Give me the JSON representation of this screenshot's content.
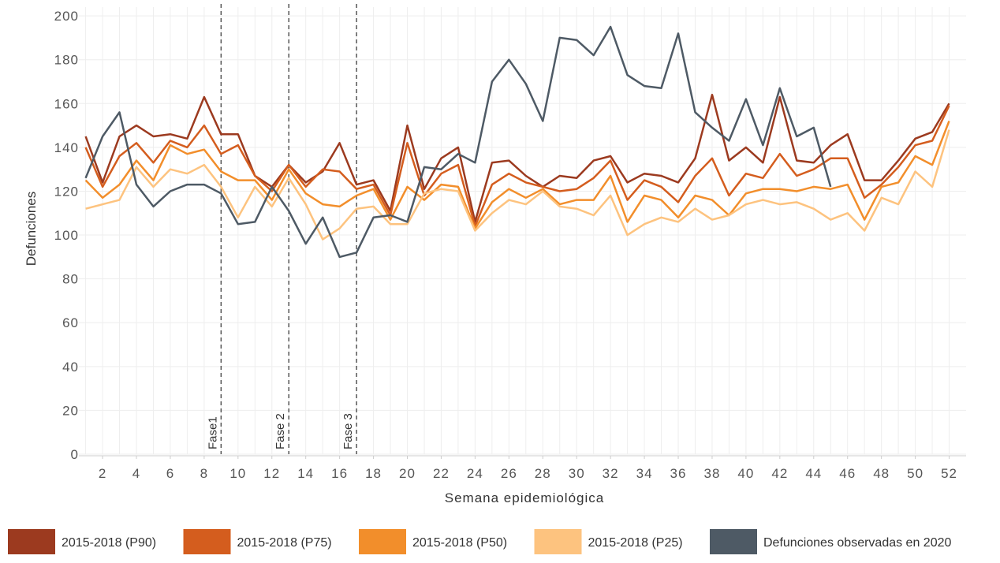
{
  "chart_data": {
    "type": "line",
    "x_label": "Semana epidemiológica",
    "y_label": "Defunciones",
    "x": [
      1,
      2,
      3,
      4,
      5,
      6,
      7,
      8,
      9,
      10,
      11,
      12,
      13,
      14,
      15,
      16,
      17,
      18,
      19,
      20,
      21,
      22,
      23,
      24,
      25,
      26,
      27,
      28,
      29,
      30,
      31,
      32,
      33,
      34,
      35,
      36,
      37,
      38,
      39,
      40,
      41,
      42,
      43,
      44,
      45,
      46,
      47,
      48,
      49,
      50,
      51,
      52
    ],
    "xlim": [
      0.6,
      53
    ],
    "xticks": [
      2,
      4,
      6,
      8,
      10,
      12,
      14,
      16,
      18,
      20,
      22,
      24,
      26,
      28,
      30,
      32,
      34,
      36,
      38,
      40,
      42,
      44,
      46,
      48,
      50,
      52
    ],
    "ylim": [
      0,
      204
    ],
    "yticks": [
      0,
      20,
      40,
      60,
      80,
      100,
      120,
      140,
      160,
      180,
      200
    ],
    "grid": true,
    "legend": "bottom",
    "annotations": [
      {
        "x": 9,
        "label": "Fase1"
      },
      {
        "x": 13,
        "label": "Fase 2"
      },
      {
        "x": 17,
        "label": "Fase 3"
      }
    ],
    "series": [
      {
        "name": "2015-2018 (P90)",
        "color": "#9c3a1f",
        "values": [
          145,
          124,
          145,
          150,
          145,
          146,
          144,
          163,
          146,
          146,
          127,
          122,
          132,
          124,
          129,
          142,
          123,
          125,
          111,
          150,
          121,
          135,
          140,
          106,
          133,
          134,
          127,
          122,
          127,
          126,
          134,
          136,
          124,
          128,
          127,
          124,
          135,
          164,
          134,
          140,
          133,
          163,
          134,
          133,
          141,
          146,
          125,
          125,
          134,
          144,
          147,
          160
        ]
      },
      {
        "name": "2015-2018 (P75)",
        "color": "#d45d1e",
        "values": [
          140,
          122,
          136,
          142,
          133,
          143,
          140,
          150,
          137,
          141,
          127,
          120,
          132,
          122,
          130,
          129,
          121,
          123,
          109,
          142,
          118,
          128,
          132,
          104,
          123,
          128,
          124,
          122,
          120,
          121,
          126,
          134,
          116,
          125,
          122,
          115,
          127,
          135,
          118,
          128,
          126,
          137,
          127,
          130,
          135,
          135,
          117,
          123,
          131,
          141,
          143,
          159
        ]
      },
      {
        "name": "2015-2018 (P50)",
        "color": "#f28e2b",
        "values": [
          125,
          117,
          123,
          134,
          125,
          141,
          137,
          139,
          129,
          125,
          125,
          116,
          130,
          119,
          114,
          113,
          118,
          121,
          107,
          122,
          116,
          123,
          122,
          103,
          115,
          121,
          117,
          121,
          114,
          116,
          116,
          127,
          106,
          118,
          116,
          108,
          118,
          116,
          109,
          119,
          121,
          121,
          120,
          122,
          121,
          123,
          107,
          122,
          124,
          136,
          132,
          152
        ]
      },
      {
        "name": "2015-2018 (P25)",
        "color": "#fdc37f",
        "values": [
          112,
          114,
          116,
          131,
          122,
          130,
          128,
          132,
          122,
          108,
          122,
          113,
          126,
          114,
          98,
          103,
          112,
          113,
          105,
          105,
          119,
          121,
          120,
          102,
          110,
          116,
          114,
          120,
          113,
          112,
          109,
          118,
          100,
          105,
          108,
          106,
          112,
          107,
          109,
          114,
          116,
          114,
          115,
          112,
          107,
          110,
          102,
          117,
          114,
          129,
          122,
          148
        ]
      },
      {
        "name": "Defunciones observadas en 2020",
        "color": "#4e5a65",
        "values": [
          126,
          145,
          156,
          123,
          113,
          120,
          123,
          123,
          119,
          105,
          106,
          122,
          111,
          96,
          108,
          90,
          92,
          108,
          109,
          106,
          131,
          130,
          137,
          133,
          170,
          180,
          169,
          152,
          190,
          189,
          182,
          195,
          173,
          168,
          167,
          192,
          156,
          149,
          143,
          162,
          141,
          167,
          145,
          149,
          122,
          null,
          null,
          null,
          null,
          null,
          null,
          null
        ]
      }
    ]
  }
}
